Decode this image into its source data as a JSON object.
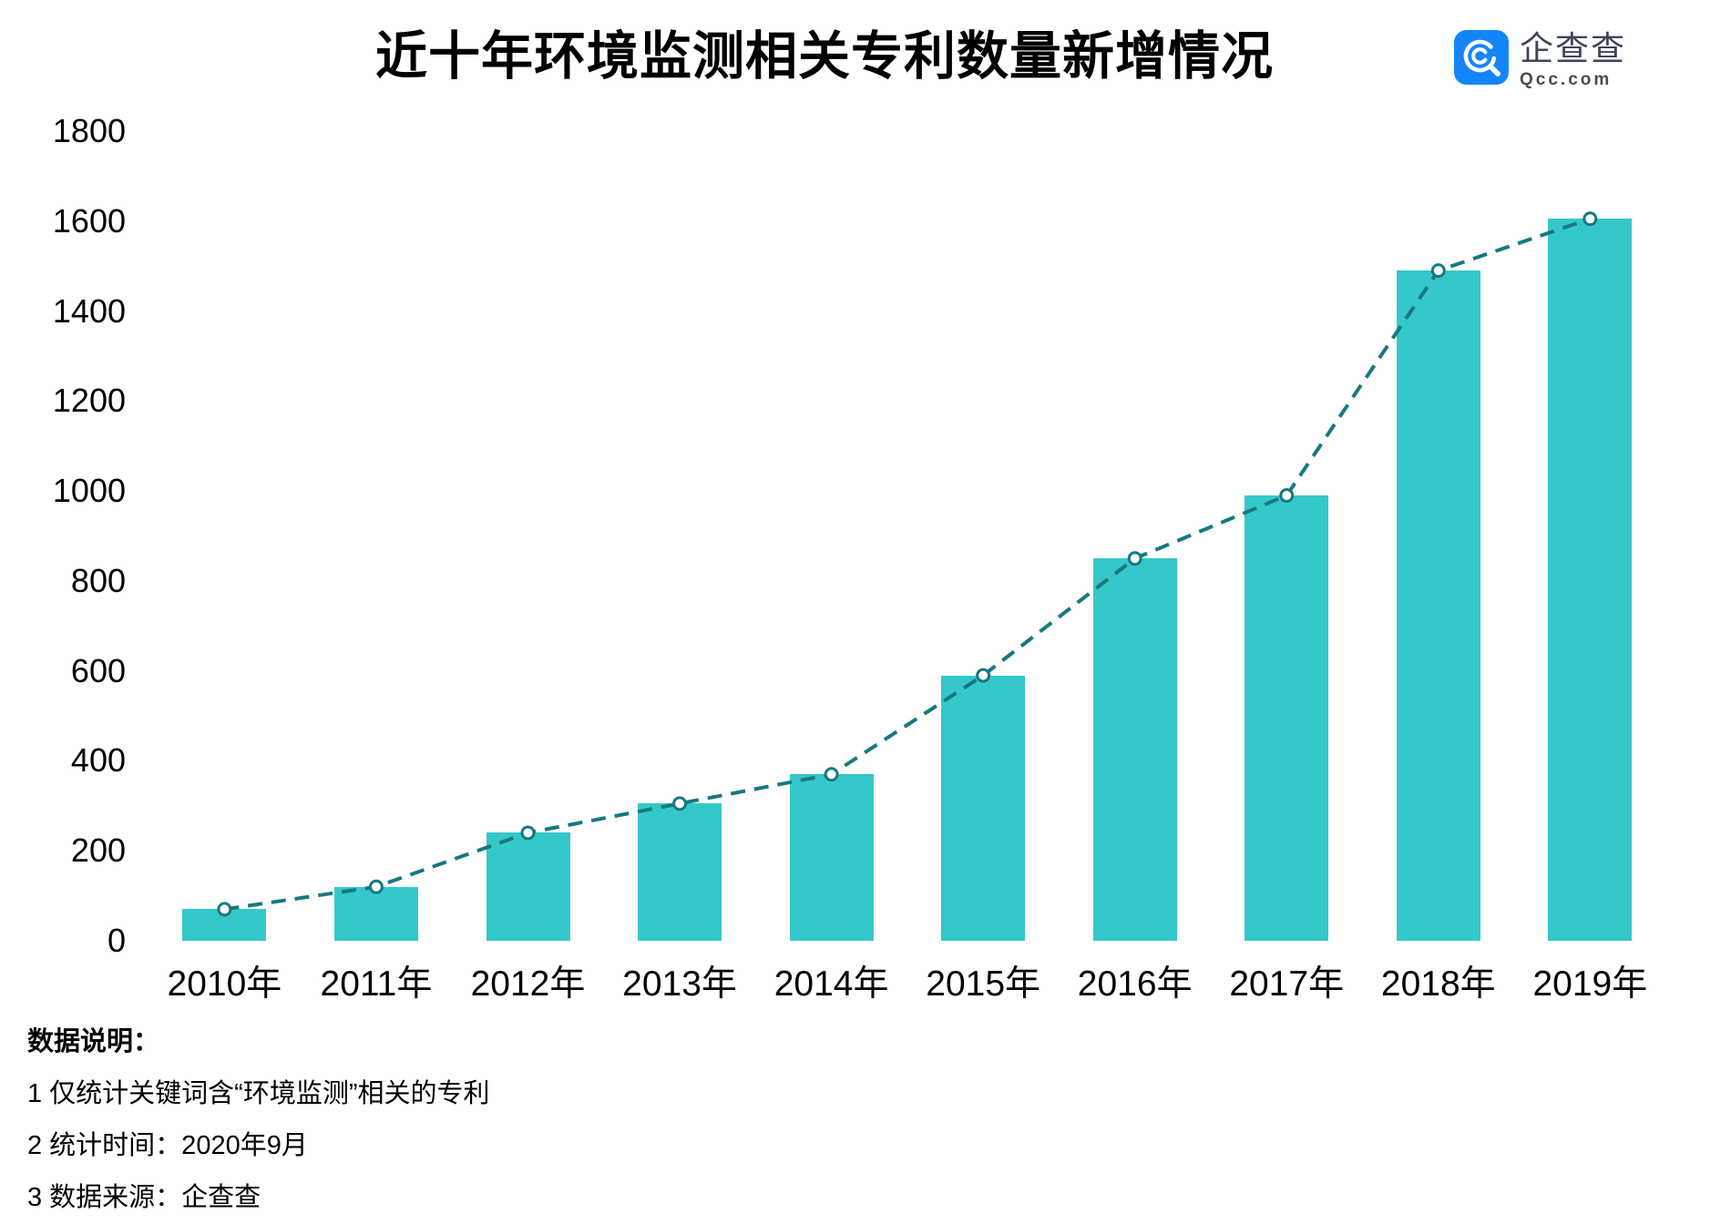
{
  "title": "近十年环境监测相关专利数量新增情况",
  "logo": {
    "name": "企查查",
    "domain": "Qcc.com",
    "brand_color": "#1586F8"
  },
  "chart_data": {
    "type": "bar",
    "overlay": "dashed-line-with-circle-markers",
    "title": "近十年环境监测相关专利数量新增情况",
    "categories": [
      "2010年",
      "2011年",
      "2012年",
      "2013年",
      "2014年",
      "2015年",
      "2016年",
      "2017年",
      "2018年",
      "2019年"
    ],
    "values": [
      70,
      120,
      240,
      305,
      370,
      590,
      850,
      990,
      1490,
      1605
    ],
    "xlabel": "",
    "ylabel": "",
    "ylim": [
      0,
      1800
    ],
    "ytick_step": 200,
    "grid": false,
    "legend": "none",
    "bar_color": "#35C8CA",
    "line_color": "#17797F",
    "marker_fill": "#FFFFFF",
    "background": "#FFFFFF"
  },
  "notes": {
    "heading": "数据说明：",
    "items": [
      "1 仅统计关键词含“环境监测”相关的专利",
      "2 统计时间：2020年9月",
      "3 数据来源：企查查"
    ]
  }
}
